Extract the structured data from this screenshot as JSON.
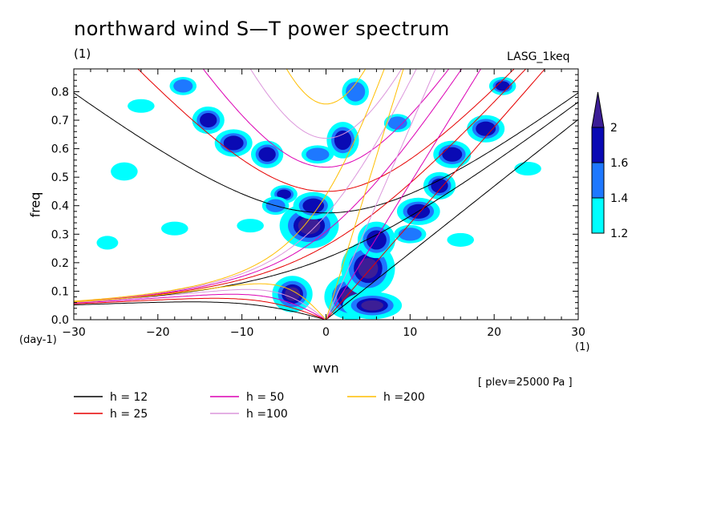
{
  "header": {
    "title": "northward wind S—T power spectrum",
    "title_unit": "(1)",
    "run_label": "LASG_1keq",
    "plev_label": "[ plev=25000 Pa ]"
  },
  "chart_data": {
    "type": "heatmap",
    "title": "northward wind S—T power spectrum",
    "xlabel": "wvn",
    "ylabel": "freq",
    "x_unit": "(1)",
    "y_unit": "(day-1)",
    "xlim": [
      -30,
      30
    ],
    "ylim": [
      0.0,
      0.88
    ],
    "x_ticks": [
      -30,
      -20,
      -10,
      0,
      10,
      20,
      30
    ],
    "x_tick_labels": [
      "−30",
      "−20",
      "−10",
      "0",
      "10",
      "20",
      "30"
    ],
    "y_ticks": [
      0.0,
      0.1,
      0.2,
      0.3,
      0.4,
      0.5,
      0.6,
      0.7,
      0.8
    ],
    "y_tick_labels": [
      "0.0",
      "0.1",
      "0.2",
      "0.3",
      "0.4",
      "0.5",
      "0.6",
      "0.7",
      "0.8"
    ],
    "colorbar": {
      "levels": [
        1.2,
        1.4,
        1.6,
        2
      ],
      "labels": [
        "1.2",
        "1.4",
        "1.6",
        "2"
      ],
      "colors": [
        "#00ffff",
        "#1e78ff",
        "#0a0ab4",
        "#3c1e96"
      ]
    },
    "dispersion_curves": [
      {
        "label": "h = 12",
        "h": 12,
        "color": "#000000"
      },
      {
        "label": "h = 25",
        "h": 25,
        "color": "#e60000"
      },
      {
        "label": "h = 50",
        "h": 50,
        "color": "#dc00b4"
      },
      {
        "label": "h =100",
        "h": 100,
        "color": "#dc96dc"
      },
      {
        "label": "h =200",
        "h": 200,
        "color": "#ffbe00"
      }
    ],
    "power_blobs": [
      {
        "x": -2.0,
        "y": 0.33,
        "level": 2,
        "rx": 2.2,
        "ry": 0.05
      },
      {
        "x": -1.5,
        "y": 0.4,
        "level": 1.6,
        "rx": 1.5,
        "ry": 0.03
      },
      {
        "x": -4.0,
        "y": 0.09,
        "level": 2,
        "rx": 1.5,
        "ry": 0.04
      },
      {
        "x": 3.0,
        "y": 0.08,
        "level": 2,
        "rx": 2.0,
        "ry": 0.05
      },
      {
        "x": 5.0,
        "y": 0.18,
        "level": 2,
        "rx": 2.0,
        "ry": 0.06
      },
      {
        "x": 6.0,
        "y": 0.28,
        "level": 1.6,
        "rx": 1.4,
        "ry": 0.04
      },
      {
        "x": 5.5,
        "y": 0.05,
        "level": 2,
        "rx": 2.2,
        "ry": 0.03
      },
      {
        "x": 11.0,
        "y": 0.38,
        "level": 1.6,
        "rx": 1.6,
        "ry": 0.03
      },
      {
        "x": 13.5,
        "y": 0.47,
        "level": 1.6,
        "rx": 1.2,
        "ry": 0.03
      },
      {
        "x": 15.0,
        "y": 0.58,
        "level": 1.6,
        "rx": 1.4,
        "ry": 0.03
      },
      {
        "x": 19.0,
        "y": 0.67,
        "level": 1.6,
        "rx": 1.4,
        "ry": 0.03
      },
      {
        "x": -11.0,
        "y": 0.62,
        "level": 1.6,
        "rx": 1.4,
        "ry": 0.03
      },
      {
        "x": -7.0,
        "y": 0.58,
        "level": 1.6,
        "rx": 1.2,
        "ry": 0.03
      },
      {
        "x": -14.0,
        "y": 0.7,
        "level": 1.6,
        "rx": 1.2,
        "ry": 0.03
      },
      {
        "x": -17.0,
        "y": 0.82,
        "level": 1.4,
        "rx": 1.0,
        "ry": 0.02
      },
      {
        "x": 2.0,
        "y": 0.63,
        "level": 1.6,
        "rx": 1.2,
        "ry": 0.04
      },
      {
        "x": 3.5,
        "y": 0.8,
        "level": 1.4,
        "rx": 1.0,
        "ry": 0.03
      },
      {
        "x": -1.0,
        "y": 0.58,
        "level": 1.4,
        "rx": 1.2,
        "ry": 0.02
      },
      {
        "x": 10.0,
        "y": 0.3,
        "level": 1.4,
        "rx": 1.2,
        "ry": 0.02
      },
      {
        "x": 21.0,
        "y": 0.82,
        "level": 1.6,
        "rx": 1.0,
        "ry": 0.02
      },
      {
        "x": -5.0,
        "y": 0.44,
        "level": 1.6,
        "rx": 1.0,
        "ry": 0.02
      },
      {
        "x": -6.0,
        "y": 0.4,
        "level": 1.4,
        "rx": 1.0,
        "ry": 0.02
      },
      {
        "x": 8.5,
        "y": 0.69,
        "level": 1.4,
        "rx": 1.0,
        "ry": 0.02
      },
      {
        "x": -24.0,
        "y": 0.52,
        "level": 1.2,
        "rx": 1.0,
        "ry": 0.02
      },
      {
        "x": -18.0,
        "y": 0.32,
        "level": 1.2,
        "rx": 1.0,
        "ry": 0.015
      },
      {
        "x": -26.0,
        "y": 0.27,
        "level": 1.2,
        "rx": 0.8,
        "ry": 0.015
      },
      {
        "x": 24.0,
        "y": 0.53,
        "level": 1.2,
        "rx": 1.0,
        "ry": 0.015
      },
      {
        "x": 16.0,
        "y": 0.28,
        "level": 1.2,
        "rx": 1.0,
        "ry": 0.015
      },
      {
        "x": -22.0,
        "y": 0.75,
        "level": 1.2,
        "rx": 1.0,
        "ry": 0.015
      },
      {
        "x": -9.0,
        "y": 0.33,
        "level": 1.2,
        "rx": 1.0,
        "ry": 0.015
      }
    ]
  },
  "legend": {
    "col1": [
      {
        "label": "h = 12",
        "color": "#000000"
      },
      {
        "label": "h = 25",
        "color": "#e60000"
      }
    ],
    "col2": [
      {
        "label": "h = 50",
        "color": "#dc00b4"
      },
      {
        "label": "h =100",
        "color": "#dc96dc"
      }
    ],
    "col3": [
      {
        "label": "h =200",
        "color": "#ffbe00"
      }
    ]
  }
}
